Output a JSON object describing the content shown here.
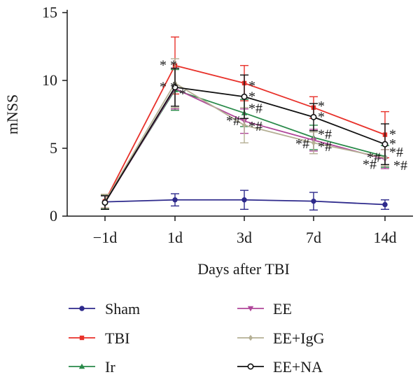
{
  "chart_data": {
    "type": "line",
    "title": "",
    "xlabel": "Days after TBI",
    "ylabel": "mNSS",
    "categories": [
      "−1d",
      "1d",
      "3d",
      "7d",
      "14d"
    ],
    "ylim": [
      0,
      15
    ],
    "yticks": [
      0,
      5,
      10,
      15
    ],
    "grid": false,
    "legend_position": "bottom",
    "series": [
      {
        "name": "Sham",
        "color": "#2e2a8c",
        "marker": "circle-filled",
        "values": [
          1.05,
          1.2,
          1.2,
          1.1,
          0.85
        ],
        "errors": [
          0.45,
          0.45,
          0.7,
          0.65,
          0.35
        ]
      },
      {
        "name": "TBI",
        "color": "#e8312a",
        "marker": "square",
        "values": [
          1.1,
          11.1,
          9.8,
          8.0,
          6.0
        ],
        "errors": [
          0.5,
          2.1,
          1.3,
          0.8,
          1.7
        ]
      },
      {
        "name": "Ir",
        "color": "#2a8a4a",
        "marker": "triangle-up",
        "values": [
          1.05,
          9.3,
          7.6,
          5.8,
          4.4
        ],
        "errors": [
          0.5,
          1.5,
          1.0,
          0.9,
          0.8
        ]
      },
      {
        "name": "EE",
        "color": "#b0479a",
        "marker": "triangle-down",
        "values": [
          1.0,
          9.4,
          7.0,
          5.6,
          4.2
        ],
        "errors": [
          0.5,
          1.5,
          0.9,
          0.8,
          0.7
        ]
      },
      {
        "name": "EE+IgG",
        "color": "#b5b095",
        "marker": "diamond",
        "values": [
          1.1,
          9.8,
          6.7,
          5.4,
          4.3
        ],
        "errors": [
          0.5,
          1.8,
          1.3,
          0.8,
          0.6
        ]
      },
      {
        "name": "EE+NA",
        "color": "#111111",
        "marker": "circle-open",
        "values": [
          1.0,
          9.5,
          8.8,
          7.3,
          5.3
        ],
        "errors": [
          0.5,
          1.4,
          1.6,
          1.0,
          1.5
        ]
      }
    ],
    "annotations": [
      {
        "category": "1d",
        "value": 11.1,
        "text": "* *"
      },
      {
        "category": "1d",
        "value": 9.5,
        "text": "* *"
      },
      {
        "category": "1d",
        "value": 9.0,
        "text": "*"
      },
      {
        "category": "3d",
        "value": 9.6,
        "text": "*"
      },
      {
        "category": "3d",
        "value": 8.8,
        "text": "*"
      },
      {
        "category": "3d",
        "value": 7.9,
        "text": "*#"
      },
      {
        "category": "3d",
        "value": 7.0,
        "text": "*#"
      },
      {
        "category": "3d",
        "value": 6.6,
        "text": "*#"
      },
      {
        "category": "7d",
        "value": 8.1,
        "text": "*"
      },
      {
        "category": "7d",
        "value": 7.3,
        "text": "*"
      },
      {
        "category": "7d",
        "value": 6.0,
        "text": "*#"
      },
      {
        "category": "7d",
        "value": 5.3,
        "text": "*#"
      },
      {
        "category": "7d",
        "value": 5.1,
        "text": "*#"
      },
      {
        "category": "14d",
        "value": 6.0,
        "text": "*"
      },
      {
        "category": "14d",
        "value": 5.3,
        "text": "*"
      },
      {
        "category": "14d",
        "value": 4.7,
        "text": "*#"
      },
      {
        "category": "14d",
        "value": 4.3,
        "text": "*#"
      },
      {
        "category": "14d",
        "value": 3.8,
        "text": "*#"
      },
      {
        "category": "14d",
        "value": 3.7,
        "text": "*#"
      }
    ]
  }
}
